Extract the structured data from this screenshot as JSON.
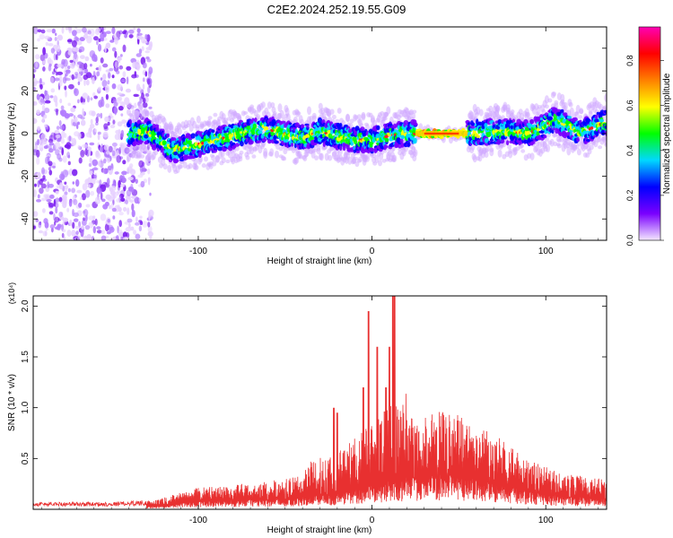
{
  "title": "C2E2.2024.252.19.55.G09",
  "chart_data": [
    {
      "type": "heatmap",
      "xlabel": "Height of straight line (km)",
      "ylabel": "Frequency (Hz)",
      "xlim": [
        -195,
        135
      ],
      "ylim": [
        -50,
        50
      ],
      "xticks": [
        -100,
        0,
        100
      ],
      "yticks": [
        -40,
        -20,
        0,
        20,
        40
      ],
      "colorbar": {
        "label": "Normalized spectral amplitude",
        "range": [
          0,
          0.95
        ],
        "ticks": [
          "0.0",
          "0.2",
          "0.4",
          "0.6",
          "0.8"
        ],
        "tick_values": [
          0,
          0.2,
          0.4,
          0.6,
          0.8
        ],
        "colormap": [
          "#f4e8ff",
          "#7a00ff",
          "#0000ff",
          "#00d8ff",
          "#00ff00",
          "#ffff00",
          "#ff8000",
          "#ff0000",
          "#ff00b4"
        ]
      },
      "noise_region_x": [
        -195,
        -127
      ],
      "ridge": {
        "x": [
          -140,
          -130,
          -120,
          -115,
          -110,
          -100,
          -90,
          -80,
          -70,
          -60,
          -50,
          -40,
          -30,
          -20,
          -10,
          0,
          10,
          20,
          30,
          40,
          50,
          60,
          70,
          80,
          90,
          100,
          105,
          110,
          120,
          130,
          135
        ],
        "y": [
          0,
          1,
          -4,
          -8,
          -7,
          -5,
          -3,
          -1,
          1,
          2,
          0,
          -2,
          1,
          -1,
          -3,
          -3,
          -1,
          0,
          0,
          0,
          0,
          0,
          1,
          1,
          0,
          4,
          7,
          5,
          0,
          4,
          5
        ]
      }
    },
    {
      "type": "line",
      "xlabel": "Height of straight line (km)",
      "ylabel": "SNR (10 * v/v)",
      "yscale_label": "(x10⁴)",
      "xlim": [
        -195,
        135
      ],
      "ylim": [
        0,
        2.1
      ],
      "xticks": [
        -100,
        0,
        100
      ],
      "yticks": [
        "0.5",
        "1.0",
        "1.5",
        "2.0"
      ],
      "ytick_values": [
        0.5,
        1.0,
        1.5,
        2.0
      ],
      "color": "#e83030",
      "envelope": {
        "x": [
          -195,
          -150,
          -125,
          -110,
          -100,
          -80,
          -60,
          -40,
          -30,
          -20,
          -10,
          0,
          10,
          20,
          30,
          40,
          50,
          60,
          70,
          80,
          90,
          100,
          110,
          120,
          130,
          135
        ],
        "y": [
          0.06,
          0.06,
          0.08,
          0.15,
          0.2,
          0.22,
          0.25,
          0.3,
          0.35,
          0.4,
          0.5,
          0.6,
          0.7,
          0.8,
          0.85,
          0.88,
          0.85,
          0.78,
          0.68,
          0.55,
          0.45,
          0.38,
          0.32,
          0.3,
          0.28,
          0.28
        ]
      },
      "peaks": [
        {
          "x": -22,
          "y": 1.0
        },
        {
          "x": -20,
          "y": 0.95
        },
        {
          "x": -5,
          "y": 1.2
        },
        {
          "x": -2,
          "y": 1.95
        },
        {
          "x": 3,
          "y": 1.6
        },
        {
          "x": 8,
          "y": 1.2
        },
        {
          "x": 10,
          "y": 1.6
        },
        {
          "x": 12,
          "y": 2.1
        },
        {
          "x": 13,
          "y": 2.1
        }
      ]
    }
  ]
}
